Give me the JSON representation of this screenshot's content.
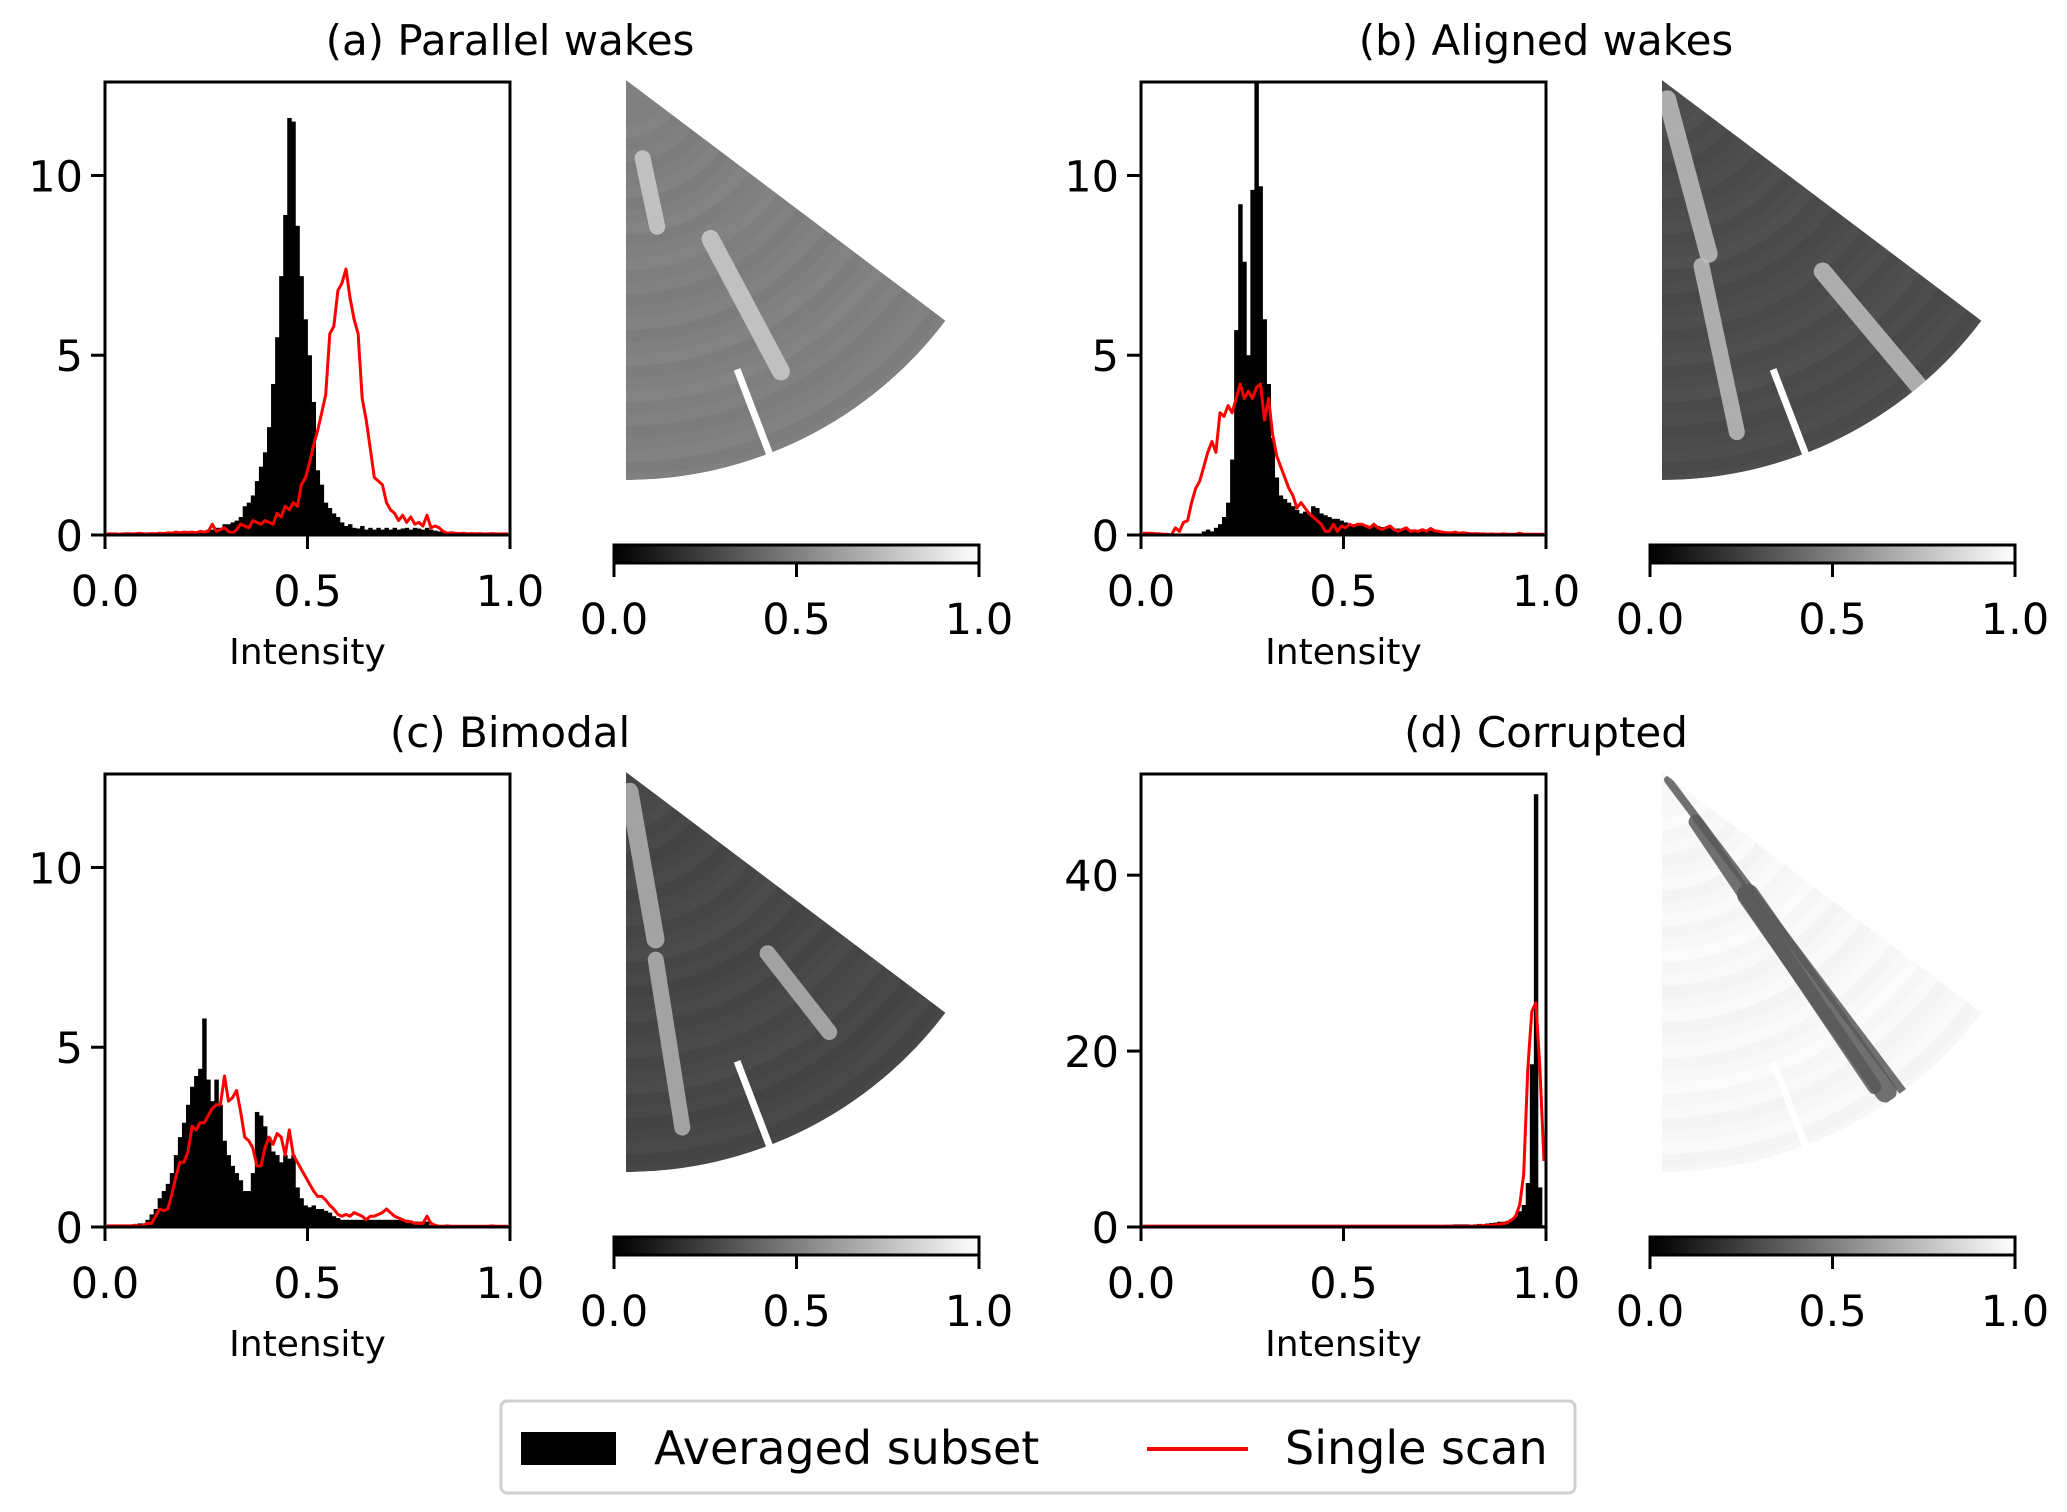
{
  "legend": {
    "items": [
      {
        "label": "Averaged subset",
        "kind": "patch",
        "color": "#000000"
      },
      {
        "label": "Single scan",
        "kind": "line",
        "color": "#ff0000"
      }
    ]
  },
  "colorbar": {
    "label_ticks": [
      "0.0",
      "0.5",
      "1.0"
    ],
    "tick_values": [
      0.0,
      0.5,
      1.0
    ],
    "colormap": "gray",
    "range": [
      0,
      1
    ]
  },
  "chart_data": [
    {
      "id": "a",
      "type": "bar",
      "title": "(a) Parallel wakes",
      "xlabel": "Intensity",
      "ylabel": "",
      "xlim": [
        0,
        1
      ],
      "ylim": [
        0,
        12.6
      ],
      "xticks": [
        0.0,
        0.5,
        1.0
      ],
      "xtick_labels": [
        "0.0",
        "0.5",
        "1.0"
      ],
      "yticks": [
        0,
        5,
        10
      ],
      "ytick_labels": [
        "0",
        "5",
        "10"
      ],
      "bin_width": 0.01,
      "series": [
        {
          "name": "Averaged subset",
          "type": "histogram",
          "color": "#000000",
          "values": [
            0.02,
            0.02,
            0.02,
            0.02,
            0.02,
            0.03,
            0.03,
            0.03,
            0.03,
            0.03,
            0.04,
            0.04,
            0.04,
            0.04,
            0.05,
            0.05,
            0.05,
            0.06,
            0.06,
            0.06,
            0.07,
            0.07,
            0.08,
            0.08,
            0.1,
            0.15,
            0.15,
            0.2,
            0.2,
            0.3,
            0.3,
            0.35,
            0.4,
            0.5,
            0.8,
            0.9,
            1.1,
            1.5,
            1.9,
            2.3,
            3.0,
            4.2,
            5.5,
            7.2,
            8.9,
            11.6,
            11.5,
            8.6,
            7.2,
            6.0,
            5.0,
            3.7,
            1.8,
            1.4,
            0.9,
            0.75,
            0.6,
            0.5,
            0.35,
            0.25,
            0.3,
            0.2,
            0.18,
            0.25,
            0.15,
            0.2,
            0.15,
            0.2,
            0.15,
            0.2,
            0.15,
            0.2,
            0.15,
            0.18,
            0.2,
            0.15,
            0.2,
            0.18,
            0.15,
            0.2,
            0.15,
            0.12,
            0.1,
            0.1,
            0.08,
            0.06,
            0.05,
            0.05,
            0.04,
            0.04,
            0.03,
            0.03,
            0.03,
            0.02,
            0.02,
            0.02,
            0.02,
            0.02,
            0.02,
            0.02
          ]
        },
        {
          "name": "Single scan",
          "type": "line",
          "color": "#ff0000",
          "values": [
            0.03,
            0.03,
            0.03,
            0.02,
            0.03,
            0.04,
            0.03,
            0.03,
            0.05,
            0.03,
            0.03,
            0.04,
            0.03,
            0.05,
            0.04,
            0.06,
            0.05,
            0.08,
            0.06,
            0.08,
            0.07,
            0.08,
            0.06,
            0.1,
            0.08,
            0.1,
            0.3,
            0.1,
            0.15,
            0.2,
            0.1,
            0.05,
            0.15,
            0.3,
            0.25,
            0.2,
            0.4,
            0.35,
            0.3,
            0.4,
            0.35,
            0.3,
            0.6,
            0.5,
            0.8,
            0.7,
            0.9,
            0.8,
            1.4,
            1.6,
            2.0,
            2.5,
            2.9,
            3.4,
            3.9,
            5.6,
            5.8,
            6.8,
            7.0,
            7.4,
            6.6,
            6.0,
            5.6,
            3.8,
            3.2,
            2.4,
            1.6,
            1.5,
            1.4,
            0.9,
            0.7,
            0.6,
            0.4,
            0.55,
            0.35,
            0.5,
            0.3,
            0.35,
            0.25,
            0.55,
            0.2,
            0.25,
            0.2,
            0.1,
            0.05,
            0.06,
            0.05,
            0.04,
            0.05,
            0.03,
            0.04,
            0.03,
            0.04,
            0.03,
            0.03,
            0.04,
            0.03,
            0.03,
            0.03,
            0.03
          ]
        }
      ],
      "image": {
        "description": "Radial scan sector (averaged subset) with two parallel bright wakes",
        "background_intensity": 0.5,
        "wake_intensity": 0.8
      }
    },
    {
      "id": "b",
      "type": "bar",
      "title": "(b) Aligned wakes",
      "xlabel": "Intensity",
      "ylabel": "",
      "xlim": [
        0,
        1
      ],
      "ylim": [
        0,
        12.6
      ],
      "xticks": [
        0.0,
        0.5,
        1.0
      ],
      "xtick_labels": [
        "0.0",
        "0.5",
        "1.0"
      ],
      "yticks": [
        0,
        5,
        10
      ],
      "ytick_labels": [
        "0",
        "5",
        "10"
      ],
      "bin_width": 0.01,
      "series": [
        {
          "name": "Averaged subset",
          "type": "histogram",
          "color": "#000000",
          "values": [
            0,
            0,
            0,
            0,
            0,
            0,
            0,
            0,
            0,
            0,
            0,
            0,
            0,
            0,
            0,
            0.1,
            0.15,
            0.1,
            0.2,
            0.3,
            0.5,
            0.9,
            2.1,
            5.7,
            9.2,
            7.6,
            5.0,
            9.6,
            12.6,
            9.7,
            6.0,
            4.2,
            2.7,
            1.6,
            1.1,
            1.0,
            0.9,
            0.8,
            0.7,
            0.6,
            0.65,
            0.6,
            0.8,
            0.75,
            0.6,
            0.55,
            0.5,
            0.45,
            0.45,
            0.4,
            0.35,
            0.3,
            0.3,
            0.3,
            0.3,
            0.28,
            0.25,
            0.25,
            0.25,
            0.22,
            0.2,
            0.2,
            0.18,
            0.18,
            0.15,
            0.15,
            0.15,
            0.15,
            0.13,
            0.13,
            0.12,
            0.12,
            0.12,
            0.12,
            0.1,
            0.1,
            0.1,
            0.08,
            0.08,
            0.06,
            0.05,
            0.04,
            0.04,
            0.03,
            0.03,
            0.03,
            0.03,
            0.03,
            0.02,
            0.02,
            0.02,
            0.02,
            0.02,
            0.02,
            0.02,
            0.02,
            0.02,
            0.02,
            0.02,
            0.02
          ]
        },
        {
          "name": "Single scan",
          "type": "line",
          "color": "#ff0000",
          "values": [
            0.05,
            0.05,
            0.05,
            0.04,
            0.03,
            0.02,
            0.02,
            0.0,
            0.2,
            0.1,
            0.35,
            0.4,
            0.9,
            1.3,
            1.5,
            1.9,
            2.3,
            2.6,
            2.3,
            3.4,
            3.3,
            3.6,
            3.4,
            3.8,
            4.2,
            3.8,
            4.0,
            3.8,
            4.1,
            4.2,
            3.2,
            3.8,
            2.8,
            2.2,
            1.9,
            1.6,
            1.3,
            1.1,
            0.75,
            0.9,
            0.75,
            0.6,
            0.5,
            0.4,
            0.3,
            0.1,
            0.1,
            0.3,
            0.1,
            0.25,
            0.2,
            0.3,
            0.25,
            0.3,
            0.3,
            0.25,
            0.2,
            0.3,
            0.2,
            0.15,
            0.2,
            0.25,
            0.15,
            0.1,
            0.15,
            0.2,
            0.1,
            0.12,
            0.1,
            0.15,
            0.1,
            0.18,
            0.12,
            0.1,
            0.08,
            0.06,
            0.05,
            0.08,
            0.05,
            0.06,
            0.05,
            0.03,
            0.04,
            0.03,
            0.03,
            0.02,
            0.03,
            0.02,
            0.02,
            0.03,
            0.02,
            0.02,
            0.02,
            0.05,
            0.02,
            0.02,
            0.02,
            0.02,
            0.02,
            0.02
          ]
        }
      ],
      "image": {
        "description": "Radial scan sector (averaged subset) with aligned bright wakes",
        "background_intensity": 0.3,
        "wake_intensity": 0.75
      }
    },
    {
      "id": "c",
      "type": "bar",
      "title": "(c) Bimodal",
      "xlabel": "Intensity",
      "ylabel": "",
      "xlim": [
        0,
        1
      ],
      "ylim": [
        0,
        12.6
      ],
      "xticks": [
        0.0,
        0.5,
        1.0
      ],
      "xtick_labels": [
        "0.0",
        "0.5",
        "1.0"
      ],
      "yticks": [
        0,
        5,
        10
      ],
      "ytick_labels": [
        "0",
        "5",
        "10"
      ],
      "bin_width": 0.01,
      "series": [
        {
          "name": "Averaged subset",
          "type": "histogram",
          "color": "#000000",
          "values": [
            0,
            0,
            0,
            0,
            0,
            0,
            0,
            0,
            0.1,
            0.1,
            0.2,
            0.35,
            0.5,
            0.8,
            1.0,
            1.2,
            1.5,
            2.0,
            2.5,
            2.9,
            3.4,
            3.9,
            4.2,
            4.4,
            5.8,
            4.1,
            3.5,
            4.1,
            3.4,
            2.4,
            2.0,
            1.7,
            1.5,
            1.3,
            1.0,
            1.0,
            1.5,
            3.2,
            3.1,
            2.8,
            2.5,
            2.1,
            2.0,
            1.8,
            2.0,
            1.9,
            2.0,
            1.1,
            0.8,
            0.6,
            0.55,
            0.6,
            0.5,
            0.5,
            0.45,
            0.4,
            0.3,
            0.25,
            0.2,
            0.2,
            0.2,
            0.2,
            0.2,
            0.2,
            0.2,
            0.2,
            0.2,
            0.2,
            0.2,
            0.2,
            0.2,
            0.2,
            0.2,
            0.2,
            0.2,
            0.15,
            0.15,
            0.15,
            0.15,
            0.15,
            0.05,
            0.04,
            0.04,
            0.03,
            0.03,
            0.03,
            0.03,
            0.02,
            0.02,
            0.02,
            0.02,
            0.02,
            0.02,
            0.02,
            0.02,
            0.02,
            0.02,
            0.02,
            0.02,
            0.02
          ]
        },
        {
          "name": "Single scan",
          "type": "line",
          "color": "#ff0000",
          "values": [
            0.03,
            0.03,
            0.03,
            0.03,
            0.03,
            0.03,
            0.03,
            0.05,
            0.02,
            0.05,
            0.1,
            0.1,
            0.3,
            0.5,
            0.45,
            0.5,
            0.9,
            1.4,
            1.8,
            1.8,
            2.1,
            2.8,
            2.7,
            2.9,
            2.9,
            3.1,
            3.3,
            3.4,
            3.4,
            4.2,
            3.5,
            3.6,
            3.8,
            3.2,
            2.5,
            2.4,
            2.2,
            1.7,
            1.7,
            2.2,
            2.5,
            2.3,
            2.6,
            2.5,
            2.0,
            2.7,
            2.0,
            1.8,
            1.6,
            1.4,
            1.2,
            1.0,
            0.85,
            0.85,
            0.75,
            0.6,
            0.5,
            0.35,
            0.3,
            0.35,
            0.3,
            0.4,
            0.35,
            0.3,
            0.2,
            0.3,
            0.3,
            0.35,
            0.4,
            0.5,
            0.4,
            0.3,
            0.25,
            0.2,
            0.15,
            0.15,
            0.1,
            0.1,
            0.1,
            0.3,
            0.1,
            0.05,
            0.02,
            0.02,
            0.03,
            0.02,
            0.02,
            0.02,
            0.02,
            0.02,
            0.02,
            0.02,
            0.02,
            0.02,
            0.02,
            0.03,
            0.02,
            0.02,
            0.02,
            0.02
          ]
        }
      ],
      "image": {
        "description": "Radial scan sector (averaged subset) showing two wake intensity populations",
        "background_intensity": 0.28,
        "wake_intensity": 0.7
      }
    },
    {
      "id": "d",
      "type": "bar",
      "title": "(d) Corrupted",
      "xlabel": "Intensity",
      "ylabel": "",
      "xlim": [
        0,
        1
      ],
      "ylim": [
        0,
        51.5
      ],
      "xticks": [
        0.0,
        0.5,
        1.0
      ],
      "xtick_labels": [
        "0.0",
        "0.5",
        "1.0"
      ],
      "yticks": [
        0,
        20,
        40
      ],
      "ytick_labels": [
        "0",
        "20",
        "40"
      ],
      "bin_width": 0.01,
      "series": [
        {
          "name": "Averaged subset",
          "type": "histogram",
          "color": "#000000",
          "values": [
            0,
            0,
            0,
            0,
            0,
            0,
            0,
            0,
            0,
            0,
            0,
            0,
            0,
            0,
            0,
            0,
            0,
            0,
            0,
            0,
            0,
            0,
            0,
            0,
            0,
            0,
            0,
            0,
            0,
            0,
            0,
            0,
            0,
            0,
            0,
            0,
            0,
            0,
            0,
            0,
            0,
            0,
            0,
            0,
            0,
            0,
            0,
            0,
            0,
            0,
            0,
            0,
            0,
            0,
            0,
            0,
            0,
            0,
            0,
            0,
            0,
            0,
            0,
            0,
            0,
            0,
            0,
            0,
            0,
            0,
            0.02,
            0.03,
            0.05,
            0.1,
            0.2,
            0.25,
            0.25,
            0.3,
            0.3,
            0.3,
            0.3,
            0.25,
            0.3,
            0.35,
            0.3,
            0.4,
            0.45,
            0.5,
            0.6,
            0.6,
            0.7,
            0.9,
            1.3,
            1.8,
            2.5,
            5.0,
            18.5,
            49.2,
            4.5,
            0.2
          ]
        },
        {
          "name": "Single scan",
          "type": "line",
          "color": "#ff0000",
          "values": [
            0.1,
            0.1,
            0.1,
            0.1,
            0.1,
            0.1,
            0.1,
            0.1,
            0.1,
            0.1,
            0.1,
            0.1,
            0.1,
            0.1,
            0.1,
            0.1,
            0.1,
            0.1,
            0.1,
            0.1,
            0.1,
            0.1,
            0.1,
            0.1,
            0.1,
            0.1,
            0.1,
            0.1,
            0.1,
            0.1,
            0.1,
            0.1,
            0.1,
            0.1,
            0.1,
            0.1,
            0.1,
            0.1,
            0.1,
            0.1,
            0.1,
            0.1,
            0.1,
            0.1,
            0.1,
            0.1,
            0.1,
            0.1,
            0.1,
            0.1,
            0.1,
            0.1,
            0.1,
            0.1,
            0.1,
            0.1,
            0.1,
            0.1,
            0.1,
            0.1,
            0.1,
            0.1,
            0.1,
            0.1,
            0.1,
            0.1,
            0.1,
            0.1,
            0.1,
            0.1,
            0.1,
            0.1,
            0.1,
            0.1,
            0.1,
            0.1,
            0.1,
            0.1,
            0.1,
            0.1,
            0.1,
            0.1,
            0.1,
            0.15,
            0.15,
            0.2,
            0.2,
            0.25,
            0.3,
            0.4,
            0.5,
            0.8,
            1.2,
            2.5,
            6.0,
            18.0,
            24.5,
            25.5,
            18.0,
            7.5
          ]
        }
      ],
      "image": {
        "description": "Radial scan sector (averaged subset) that is mostly saturated with dark streaks",
        "background_intensity": 0.97,
        "wake_intensity": 0.35
      }
    }
  ]
}
